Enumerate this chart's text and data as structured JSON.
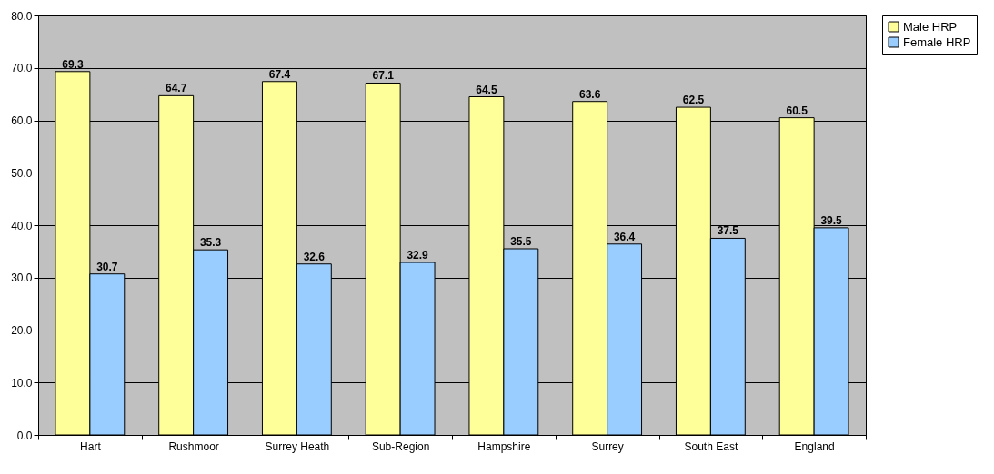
{
  "chart_data": {
    "type": "bar",
    "categories": [
      "Hart",
      "Rushmoor",
      "Surrey Heath",
      "Sub-Region",
      "Hampshire",
      "Surrey",
      "South East",
      "England"
    ],
    "series": [
      {
        "name": "Male HRP",
        "color": "#ffff99",
        "values": [
          69.3,
          64.7,
          67.4,
          67.1,
          64.5,
          63.6,
          62.5,
          60.5
        ]
      },
      {
        "name": "Female HRP",
        "color": "#99ccff",
        "values": [
          30.7,
          35.3,
          32.6,
          32.9,
          35.5,
          36.4,
          37.5,
          39.5
        ]
      }
    ],
    "ylim": [
      0,
      80
    ],
    "yticks": [
      {
        "value": 0,
        "label": "0.0"
      },
      {
        "value": 10,
        "label": "10.0"
      },
      {
        "value": 20,
        "label": "20.0"
      },
      {
        "value": 30,
        "label": "30.0"
      },
      {
        "value": 40,
        "label": "40.0"
      },
      {
        "value": 50,
        "label": "50.0"
      },
      {
        "value": 60,
        "label": "60.0"
      },
      {
        "value": 70,
        "label": "70.0"
      },
      {
        "value": 80,
        "label": "80.0"
      }
    ],
    "grid": "y",
    "legend": "right",
    "data_labels": true
  }
}
